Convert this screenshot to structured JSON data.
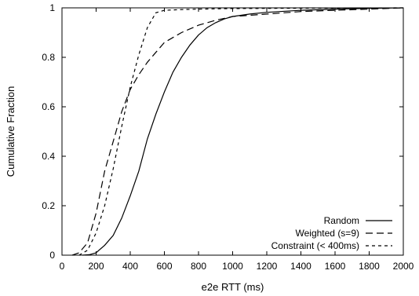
{
  "chart_data": {
    "type": "line",
    "title": "",
    "xlabel": "e2e RTT (ms)",
    "ylabel": "Cumulative Fraction",
    "xlim": [
      0,
      2000
    ],
    "ylim": [
      0,
      1
    ],
    "xticks": [
      0,
      200,
      400,
      600,
      800,
      1000,
      1200,
      1400,
      1600,
      1800,
      2000
    ],
    "yticks": [
      0,
      0.2,
      0.4,
      0.6,
      0.8,
      1
    ],
    "x_tick_labels": [
      "0",
      "200",
      "400",
      "600",
      "800",
      "1000",
      "1200",
      "1400",
      "1600",
      "1800",
      "2000"
    ],
    "y_tick_labels": [
      "0",
      "0.2",
      "0.4",
      "0.6",
      "0.8",
      "1"
    ],
    "grid": false,
    "legend_position": "bottom-right",
    "series": [
      {
        "name": "Random",
        "dash": "solid",
        "points": [
          [
            120,
            0
          ],
          [
            160,
            0.002
          ],
          [
            200,
            0.01
          ],
          [
            250,
            0.04
          ],
          [
            300,
            0.08
          ],
          [
            350,
            0.15
          ],
          [
            400,
            0.24
          ],
          [
            450,
            0.34
          ],
          [
            500,
            0.47
          ],
          [
            550,
            0.57
          ],
          [
            600,
            0.66
          ],
          [
            650,
            0.74
          ],
          [
            700,
            0.8
          ],
          [
            750,
            0.85
          ],
          [
            800,
            0.89
          ],
          [
            850,
            0.92
          ],
          [
            900,
            0.94
          ],
          [
            950,
            0.955
          ],
          [
            1000,
            0.965
          ],
          [
            1100,
            0.975
          ],
          [
            1200,
            0.982
          ],
          [
            1400,
            0.99
          ],
          [
            1600,
            0.995
          ],
          [
            1800,
            0.998
          ],
          [
            2000,
            1
          ]
        ]
      },
      {
        "name": "Weighted (s=9)",
        "dash": "long-dash",
        "points": [
          [
            60,
            0
          ],
          [
            100,
            0.01
          ],
          [
            150,
            0.05
          ],
          [
            200,
            0.17
          ],
          [
            250,
            0.34
          ],
          [
            300,
            0.46
          ],
          [
            350,
            0.58
          ],
          [
            400,
            0.67
          ],
          [
            450,
            0.73
          ],
          [
            500,
            0.78
          ],
          [
            550,
            0.82
          ],
          [
            600,
            0.86
          ],
          [
            700,
            0.9
          ],
          [
            800,
            0.93
          ],
          [
            900,
            0.95
          ],
          [
            1000,
            0.965
          ],
          [
            1200,
            0.975
          ],
          [
            1400,
            0.985
          ],
          [
            1600,
            0.99
          ],
          [
            1800,
            0.995
          ],
          [
            2000,
            1
          ]
        ]
      },
      {
        "name": "Constraint (< 400ms)",
        "dash": "short-dash",
        "points": [
          [
            100,
            0
          ],
          [
            150,
            0.02
          ],
          [
            200,
            0.09
          ],
          [
            250,
            0.2
          ],
          [
            300,
            0.35
          ],
          [
            350,
            0.52
          ],
          [
            400,
            0.68
          ],
          [
            450,
            0.81
          ],
          [
            500,
            0.92
          ],
          [
            550,
            0.98
          ],
          [
            600,
            0.99
          ],
          [
            700,
            0.993
          ],
          [
            800,
            0.995
          ],
          [
            1000,
            0.997
          ],
          [
            1500,
            0.999
          ],
          [
            2000,
            1
          ]
        ]
      }
    ]
  },
  "colors": {
    "line": "#000000",
    "background": "#ffffff"
  }
}
